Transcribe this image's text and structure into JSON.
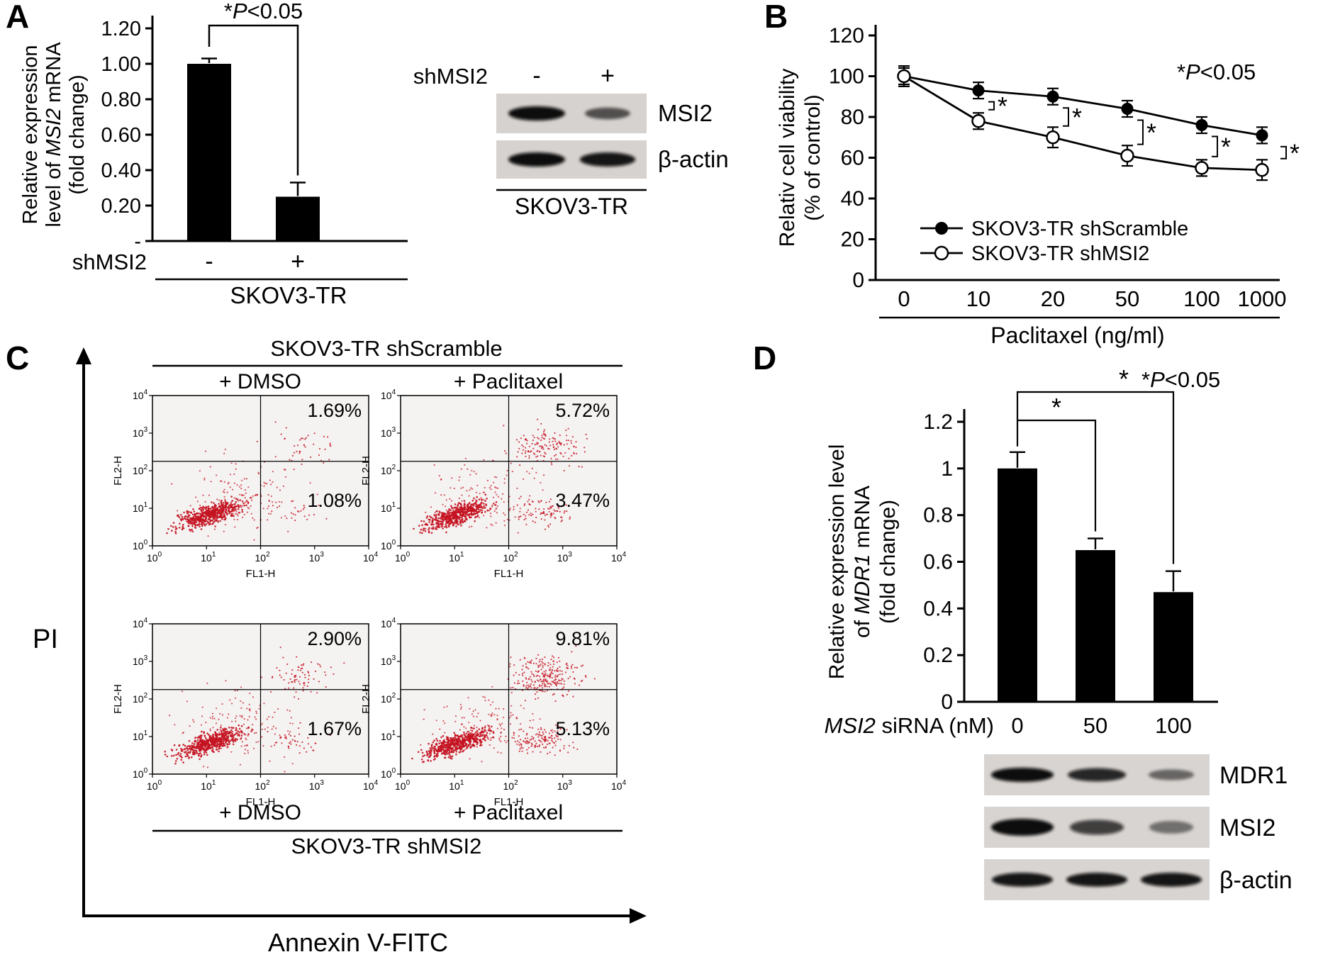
{
  "panel_labels": {
    "a": "A",
    "b": "B",
    "c": "C",
    "d": "D"
  },
  "chart_data": [
    {
      "id": "panel_a_bar",
      "type": "bar",
      "ylabel_lines": [
        [
          {
            "t": "Relative expression"
          }
        ],
        [
          {
            "t": "level of "
          },
          {
            "t": "MSI2",
            "i": 1
          },
          {
            "t": " mRNA"
          }
        ],
        [
          {
            "t": "(fold change)"
          }
        ]
      ],
      "yticks": [
        "1.20",
        "1.00",
        "0.80",
        "0.60",
        "0.40",
        "0.20",
        "-"
      ],
      "ylim": [
        0,
        1.2
      ],
      "x_axis_name": "shMSI2",
      "categories": [
        "-",
        "+"
      ],
      "values": [
        1.0,
        0.25
      ],
      "errors": [
        0.03,
        0.08
      ],
      "group_label": "SKOV3-TR",
      "significance": [
        {
          "t": "*"
        },
        {
          "t": "P",
          "i": 1
        },
        {
          "t": "<0.05"
        }
      ]
    },
    {
      "id": "panel_b_line",
      "type": "line",
      "ylabel_lines": [
        [
          {
            "t": "Relativ cell viability"
          }
        ],
        [
          {
            "t": "(% of control)"
          }
        ]
      ],
      "yticks": [
        "120",
        "100",
        "80",
        "60",
        "40",
        "20",
        "0"
      ],
      "ylim": [
        0,
        120
      ],
      "categories": [
        "0",
        "10",
        "20",
        "50",
        "100",
        "1000"
      ],
      "xlabel": "Paclitaxel (ng/ml)",
      "series": [
        {
          "name": "SKOV3-TR shScramble",
          "marker": "filled",
          "values": [
            100,
            93,
            90,
            84,
            76,
            71
          ],
          "errors": [
            5,
            4,
            4,
            4,
            4,
            4
          ]
        },
        {
          "name": "SKOV3-TR shMSI2",
          "marker": "open",
          "values": [
            100,
            78,
            70,
            61,
            55,
            54
          ],
          "errors": [
            4,
            4,
            5,
            5,
            4,
            5
          ]
        }
      ],
      "annotation": [
        {
          "t": "*"
        },
        {
          "t": "P",
          "i": 1
        },
        {
          "t": "<0.05"
        }
      ],
      "sig_at_indices": [
        1,
        2,
        3,
        4,
        5
      ],
      "legend_position": "lower-left",
      "grid": false
    },
    {
      "id": "panel_c_flow_cytometry",
      "type": "scatter",
      "top_group_label": "SKOV3-TR shScramble",
      "bottom_group_label": "SKOV3-TR shMSI2",
      "col_labels": [
        "+ DMSO",
        "+ Paclitaxel"
      ],
      "outer_ylabel": "PI",
      "outer_xlabel": "Annexin V-FITC",
      "plot_xlabel": "FL1-H",
      "plot_ylabel": "FL2-H",
      "log_exponents": [
        "0",
        "1",
        "2",
        "3",
        "4"
      ],
      "axis_range_log10": [
        0,
        4
      ],
      "plots": [
        {
          "group": "SKOV3-TR shScramble",
          "treatment": "+ DMSO",
          "upper_right_pct": 1.69,
          "lower_right_pct": 1.08
        },
        {
          "group": "SKOV3-TR shScramble",
          "treatment": "+ Paclitaxel",
          "upper_right_pct": 5.72,
          "lower_right_pct": 3.47
        },
        {
          "group": "SKOV3-TR shMSI2",
          "treatment": "+ DMSO",
          "upper_right_pct": 2.9,
          "lower_right_pct": 1.67
        },
        {
          "group": "SKOV3-TR shMSI2",
          "treatment": "+ Paclitaxel",
          "upper_right_pct": 9.81,
          "lower_right_pct": 5.13
        }
      ]
    },
    {
      "id": "panel_d_bar",
      "type": "bar",
      "ylabel_lines": [
        [
          {
            "t": "Relative expression level"
          }
        ],
        [
          {
            "t": "of "
          },
          {
            "t": "MDR1",
            "i": 1
          },
          {
            "t": " mRNA"
          }
        ],
        [
          {
            "t": "(fold change)"
          }
        ]
      ],
      "yticks": [
        "1.2",
        "1",
        "0.8",
        "0.6",
        "0.4",
        "0.2",
        "0"
      ],
      "ylim": [
        0,
        1.2
      ],
      "xlabel_parts": [
        {
          "t": "MSI2",
          "i": 1
        },
        {
          "t": " siRNA (nM)"
        }
      ],
      "categories": [
        "0",
        "50",
        "100"
      ],
      "values": [
        1.0,
        0.65,
        0.47
      ],
      "errors": [
        0.07,
        0.05,
        0.09
      ],
      "annotation": [
        {
          "t": "*"
        },
        {
          "t": "P",
          "i": 1
        },
        {
          "t": "<0.05"
        }
      ],
      "sig_brackets": [
        {
          "from": 0,
          "to": 1,
          "label": "*"
        },
        {
          "from": 0,
          "to": 2,
          "label": "*"
        }
      ]
    }
  ],
  "blots": {
    "a": {
      "lane_header": "shMSI2",
      "lanes": [
        "-",
        "+"
      ],
      "rows": [
        {
          "label": "MSI2",
          "intensities": [
            1.0,
            0.5
          ]
        },
        {
          "label": "β-actin",
          "intensities": [
            1.0,
            0.95
          ]
        }
      ],
      "group_label": "SKOV3-TR"
    },
    "d": {
      "rows": [
        {
          "label": "MDR1",
          "intensities": [
            1.0,
            0.85,
            0.4
          ]
        },
        {
          "label": "MSI2",
          "intensities": [
            1.0,
            0.7,
            0.35
          ]
        },
        {
          "label": "β-actin",
          "intensities": [
            0.95,
            0.95,
            0.95
          ]
        }
      ]
    }
  }
}
